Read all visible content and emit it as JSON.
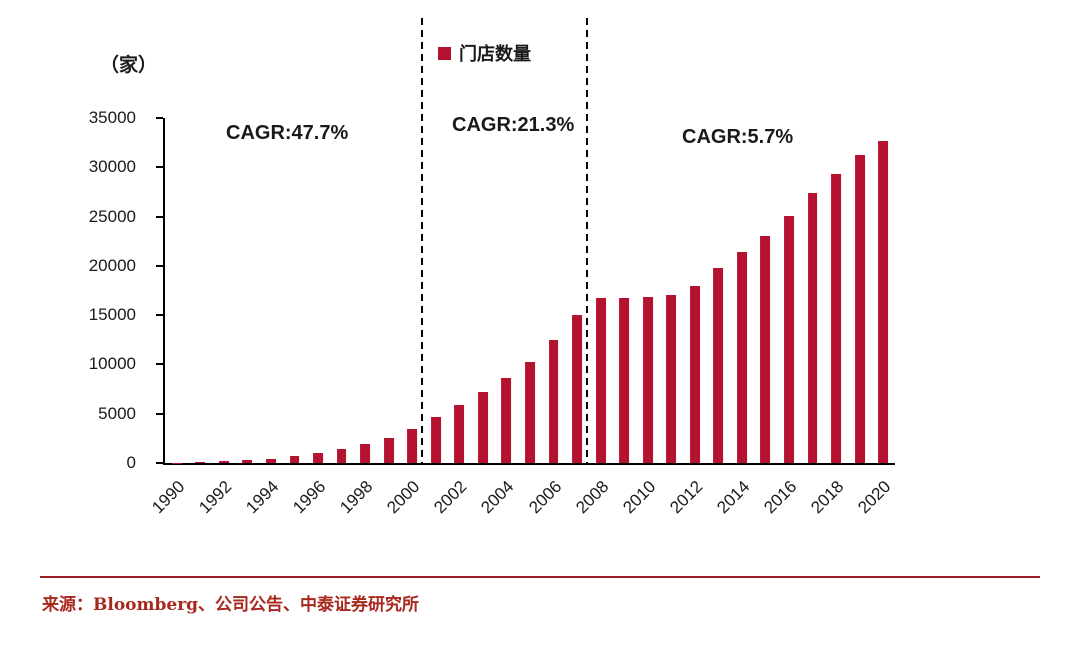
{
  "source": "来源：Bloomberg、公司公告、中泰证券研究所",
  "annotations": [
    {
      "text": "CAGR:47.7%"
    },
    {
      "text": "CAGR:21.3%"
    },
    {
      "text": "CAGR:5.7%"
    }
  ],
  "chart_data": {
    "type": "bar",
    "title": "",
    "unit": "（家）",
    "legend": "门店数量",
    "xlabel": "",
    "ylabel": "（家）",
    "bar_color": "#b5122f",
    "ylim": [
      0,
      35000
    ],
    "yticks": [
      0,
      5000,
      10000,
      15000,
      20000,
      25000,
      30000,
      35000
    ],
    "xtick_step": 2,
    "grid": false,
    "legend_position": "top-center",
    "categories": [
      1990,
      1991,
      1992,
      1993,
      1994,
      1995,
      1996,
      1997,
      1998,
      1999,
      2000,
      2001,
      2002,
      2003,
      2004,
      2005,
      2006,
      2007,
      2008,
      2009,
      2010,
      2011,
      2012,
      2013,
      2014,
      2015,
      2016,
      2017,
      2018,
      2019,
      2020
    ],
    "values": [
      50,
      100,
      200,
      300,
      400,
      700,
      1000,
      1400,
      1900,
      2500,
      3500,
      4700,
      5900,
      7200,
      8600,
      10200,
      12500,
      15000,
      16700,
      16700,
      16800,
      17000,
      18000,
      19800,
      21400,
      23000,
      25100,
      27400,
      29300,
      31200,
      32700
    ],
    "divider_boundaries": [
      11,
      18
    ]
  }
}
